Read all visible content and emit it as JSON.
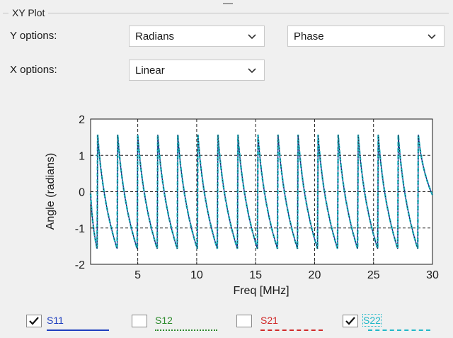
{
  "panel": {
    "title": "XY Plot"
  },
  "y_options": {
    "label": "Y options:",
    "unit_value": "Radians",
    "quantity_value": "Phase"
  },
  "x_options": {
    "label": "X options:",
    "scale_value": "Linear"
  },
  "chart_data": {
    "type": "line",
    "xlabel": "Freq [MHz]",
    "ylabel": "Angle (radians)",
    "xlim": [
      1,
      30
    ],
    "ylim": [
      -2,
      2
    ],
    "xticks": [
      5,
      10,
      15,
      20,
      25,
      30
    ],
    "yticks": [
      -2,
      -1,
      0,
      1,
      2
    ],
    "grid": true,
    "sawtooth_jump_freqs": [
      1.6,
      3.3,
      5.0,
      6.7,
      8.4,
      10.1,
      11.8,
      13.5,
      15.2,
      16.9,
      18.6,
      20.3,
      22.0,
      23.7,
      25.4,
      27.1,
      28.8
    ],
    "phase_peak": 1.57,
    "phase_trough": -1.57,
    "series": [
      {
        "name": "S11",
        "visible": true,
        "color": "#1f3fbf",
        "style": "solid"
      },
      {
        "name": "S12",
        "visible": false,
        "color": "#2e8b2e",
        "style": "dotted"
      },
      {
        "name": "S21",
        "visible": false,
        "color": "#d02a2a",
        "style": "dashdot"
      },
      {
        "name": "S22",
        "visible": true,
        "color": "#21b8c8",
        "style": "dashed"
      }
    ]
  },
  "legend": {
    "s11_label": "S11",
    "s12_label": "S12",
    "s21_label": "S21",
    "s22_label": "S22",
    "s11_checked": true,
    "s12_checked": false,
    "s21_checked": false,
    "s22_checked": true
  },
  "icons": {
    "dropdown": "chevron-down-icon",
    "checkbox_checked": "check-icon"
  }
}
